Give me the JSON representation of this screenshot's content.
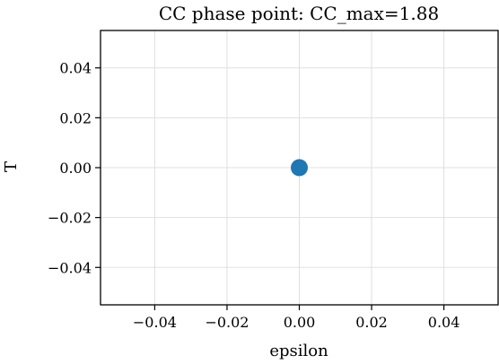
{
  "chart_data": {
    "type": "scatter",
    "title": "CC phase point: CC_max=1.88",
    "xlabel": "epsilon",
    "ylabel": "T",
    "xlim": [
      -0.055,
      0.055
    ],
    "ylim": [
      -0.055,
      0.055
    ],
    "xticks": [
      -0.04,
      -0.02,
      0.0,
      0.02,
      0.04
    ],
    "yticks": [
      -0.04,
      -0.02,
      0.0,
      0.02,
      0.04
    ],
    "xtick_labels": [
      "−0.04",
      "−0.02",
      "0.00",
      "0.02",
      "0.04"
    ],
    "ytick_labels": [
      "−0.04",
      "−0.02",
      "0.00",
      "0.02",
      "0.04"
    ],
    "grid": true,
    "series": [
      {
        "x": [
          0.0
        ],
        "y": [
          0.0
        ],
        "color": "#1f77b4"
      }
    ]
  }
}
